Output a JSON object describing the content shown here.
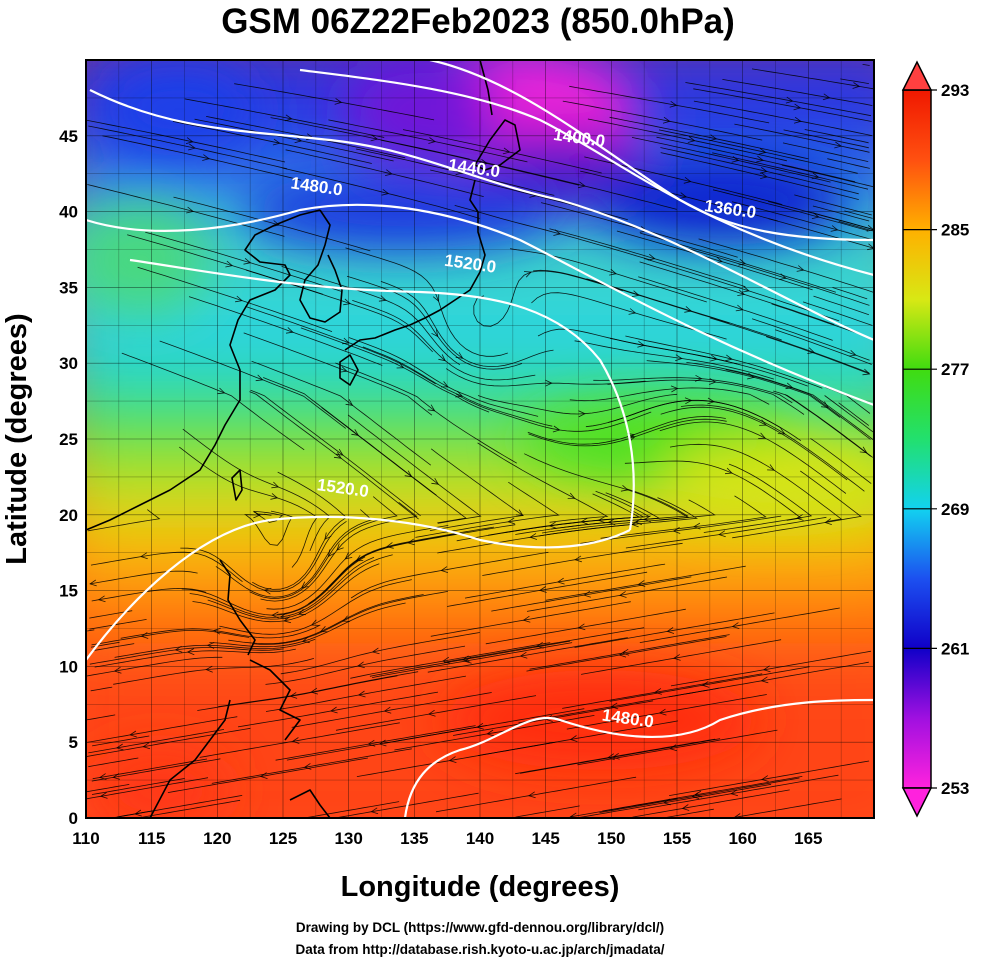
{
  "title": "GSM 06Z22Feb2023 (850.0hPa)",
  "xlabel": "Longitude (degrees)",
  "ylabel": "Latitude  (degrees)",
  "x_ticks": [
    "110",
    "115",
    "120",
    "125",
    "130",
    "135",
    "140",
    "145",
    "150",
    "155",
    "160",
    "165"
  ],
  "y_ticks": [
    "0",
    "5",
    "10",
    "15",
    "20",
    "25",
    "30",
    "35",
    "40",
    "45"
  ],
  "colorbar": {
    "ticks": [
      "253",
      "261",
      "269",
      "277",
      "285",
      "293"
    ],
    "colors": [
      "#ff22dd",
      "#a010e0",
      "#1000c8",
      "#1c50f0",
      "#12d2f0",
      "#22e06e",
      "#40dc10",
      "#d8e814",
      "#ffb000",
      "#ff5010",
      "#f01800"
    ]
  },
  "contours": [
    {
      "label": "1360.0",
      "lon": 159,
      "lat": 39.8
    },
    {
      "label": "1400.0",
      "lon": 147.5,
      "lat": 44.5
    },
    {
      "label": "1440.0",
      "lon": 139.5,
      "lat": 42.5
    },
    {
      "label": "1480.0",
      "lon": 127.5,
      "lat": 41.3
    },
    {
      "label": "1520.0",
      "lon": 139.2,
      "lat": 36.2
    },
    {
      "label": "1520.0",
      "lon": 129.5,
      "lat": 21.4
    },
    {
      "label": "1480.0",
      "lon": 151.2,
      "lat": 6.2
    }
  ],
  "credits": [
    "Drawing by DCL (https://www.gfd-dennou.org/library/dcl/)",
    "Data from http://database.rish.kyoto-u.ac.jp/arch/jmadata/"
  ]
}
